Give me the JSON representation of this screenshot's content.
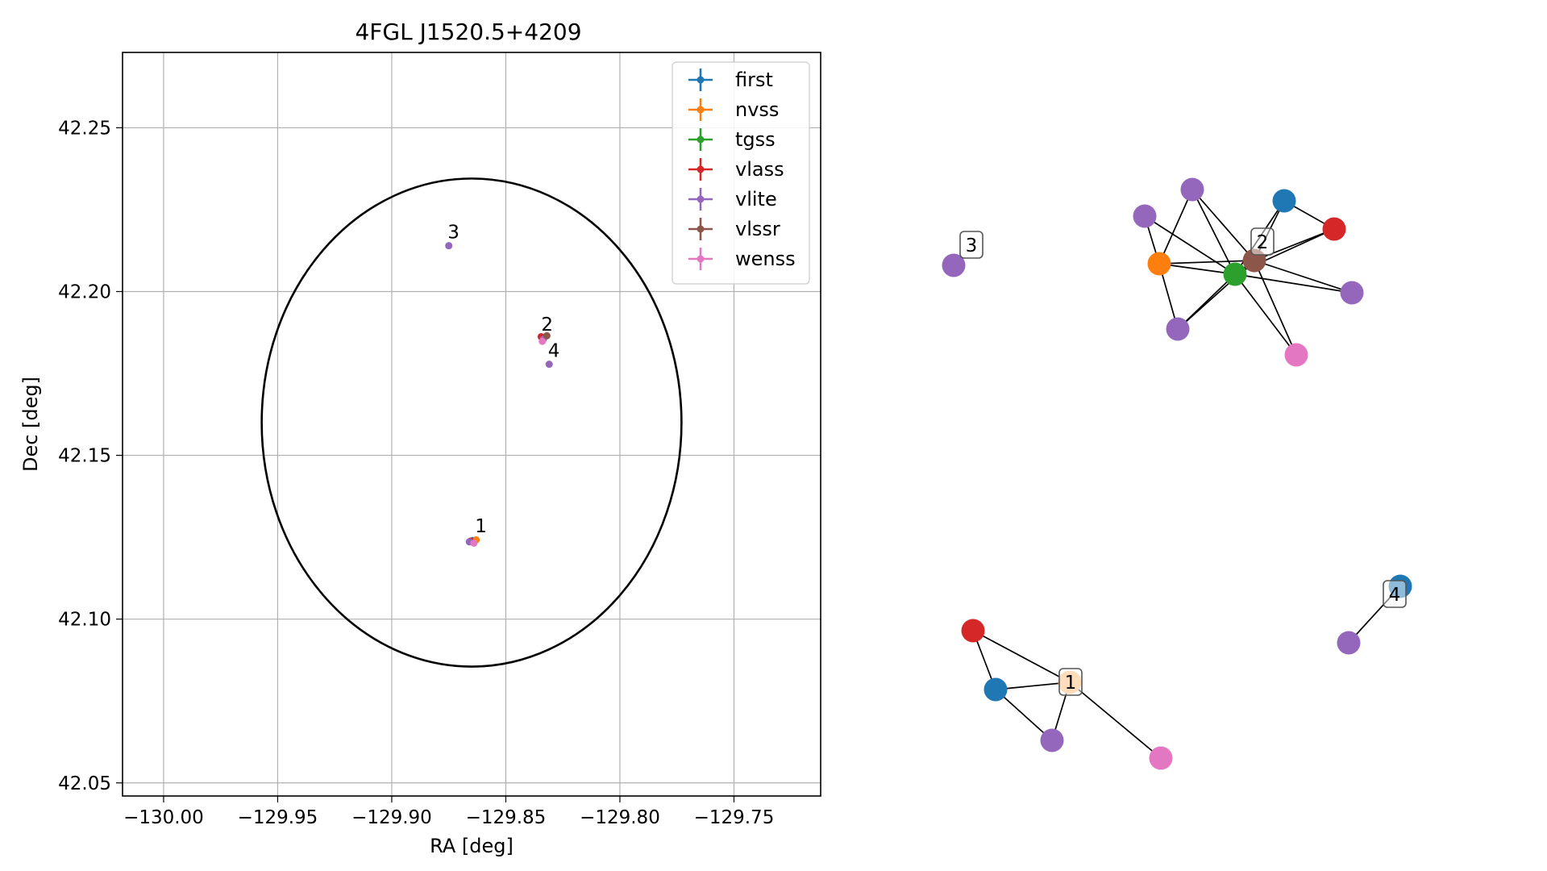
{
  "chart_data": [
    {
      "type": "scatter",
      "title": "4FGL J1520.5+4209",
      "xlabel": "RA [deg]",
      "ylabel": "Dec [deg]",
      "xlim": [
        -130.018,
        -129.712
      ],
      "ylim": [
        42.046,
        42.273
      ],
      "xticks": [
        -130.0,
        -129.95,
        -129.9,
        -129.85,
        -129.8,
        -129.75
      ],
      "xtick_labels": [
        "−130.00",
        "−129.95",
        "−129.90",
        "−129.85",
        "−129.80",
        "−129.75"
      ],
      "yticks": [
        42.05,
        42.1,
        42.15,
        42.2,
        42.25
      ],
      "ytick_labels": [
        "42.05",
        "42.10",
        "42.15",
        "42.20",
        "42.25"
      ],
      "grid": true,
      "legend_placement": "top-right",
      "series": [
        {
          "name": "first",
          "color": "#1f77b4",
          "points": [
            [
              -129.8645,
              42.124
            ]
          ]
        },
        {
          "name": "nvss",
          "color": "#ff7f0e",
          "points": [
            [
              -129.863,
              42.1242
            ]
          ]
        },
        {
          "name": "tgss",
          "color": "#2ca02c",
          "points": [
            [
              -129.834,
              42.186
            ]
          ]
        },
        {
          "name": "vlass",
          "color": "#d62728",
          "points": [
            [
              -129.8655,
              42.1238
            ],
            [
              -129.8345,
              42.1862
            ]
          ]
        },
        {
          "name": "vlite",
          "color": "#9467bd",
          "points": [
            [
              -129.875,
              42.214
            ],
            [
              -129.831,
              42.1778
            ],
            [
              -129.866,
              42.1236
            ],
            [
              -129.8335,
              42.1855
            ]
          ]
        },
        {
          "name": "vlssr",
          "color": "#8c564b",
          "points": [
            [
              -129.832,
              42.1865
            ]
          ]
        },
        {
          "name": "wenss",
          "color": "#e377c2",
          "points": [
            [
              -129.834,
              42.1848
            ],
            [
              -129.864,
              42.1232
            ]
          ]
        }
      ],
      "annotations": [
        {
          "text": "1",
          "x": -129.8635,
          "y": 42.1265
        },
        {
          "text": "2",
          "x": -129.8345,
          "y": 42.188
        },
        {
          "text": "3",
          "x": -129.8755,
          "y": 42.2163
        },
        {
          "text": "4",
          "x": -129.8315,
          "y": 42.18
        }
      ],
      "ellipse": {
        "center": [
          -129.865,
          42.16
        ],
        "semi_axis_ra": 0.092,
        "semi_axis_dec": 0.0745,
        "color": "#000000"
      }
    },
    {
      "type": "network",
      "nodes": [
        {
          "id": "v3",
          "color": "#9467bd",
          "label": "3"
        },
        {
          "id": "v2a",
          "color": "#9467bd"
        },
        {
          "id": "v2b",
          "color": "#9467bd"
        },
        {
          "id": "f2",
          "color": "#1f77b4"
        },
        {
          "id": "r2",
          "color": "#d62728"
        },
        {
          "id": "o2",
          "color": "#ff7f0e"
        },
        {
          "id": "b2",
          "color": "#8c564b",
          "label": "2"
        },
        {
          "id": "g2",
          "color": "#2ca02c"
        },
        {
          "id": "v2c",
          "color": "#9467bd"
        },
        {
          "id": "v2d",
          "color": "#9467bd"
        },
        {
          "id": "p2",
          "color": "#e377c2"
        },
        {
          "id": "r1",
          "color": "#d62728"
        },
        {
          "id": "o1",
          "color": "#ffbb78",
          "label": "1"
        },
        {
          "id": "f1",
          "color": "#1f77b4"
        },
        {
          "id": "v1",
          "color": "#9467bd"
        },
        {
          "id": "p1",
          "color": "#e377c2"
        },
        {
          "id": "f4",
          "color": "#1f77b4",
          "label": "4"
        },
        {
          "id": "v4",
          "color": "#9467bd"
        }
      ],
      "edges": [
        [
          "v2a",
          "o2"
        ],
        [
          "v2a",
          "g2"
        ],
        [
          "v2b",
          "o2"
        ],
        [
          "v2b",
          "g2"
        ],
        [
          "v2b",
          "b2"
        ],
        [
          "f2",
          "b2"
        ],
        [
          "f2",
          "g2"
        ],
        [
          "f2",
          "r2"
        ],
        [
          "r2",
          "b2"
        ],
        [
          "r2",
          "g2"
        ],
        [
          "o2",
          "b2"
        ],
        [
          "o2",
          "v2d"
        ],
        [
          "o2",
          "g2"
        ],
        [
          "b2",
          "g2"
        ],
        [
          "b2",
          "v2c"
        ],
        [
          "g2",
          "v2c"
        ],
        [
          "g2",
          "v2d"
        ],
        [
          "g2",
          "p2"
        ],
        [
          "b2",
          "v2d"
        ],
        [
          "b2",
          "p2"
        ],
        [
          "r1",
          "f1"
        ],
        [
          "r1",
          "o1"
        ],
        [
          "f1",
          "o1"
        ],
        [
          "f1",
          "v1"
        ],
        [
          "o1",
          "v1"
        ],
        [
          "o1",
          "p1"
        ],
        [
          "v4",
          "f4"
        ]
      ]
    }
  ]
}
